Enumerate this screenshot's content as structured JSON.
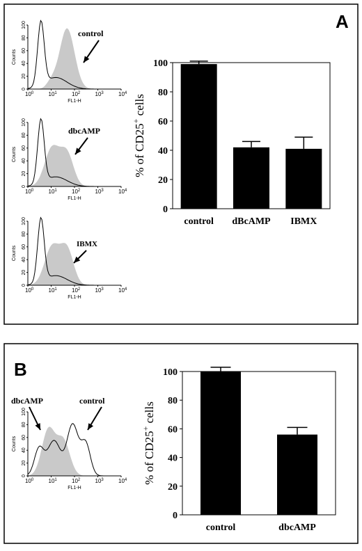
{
  "panel_a": {
    "label": "A",
    "histograms": [
      {
        "label": "control",
        "ylabel": "Counts",
        "xlabel": "FL1-H",
        "yticks": [
          "0",
          "20",
          "40",
          "60",
          "80",
          "100"
        ],
        "xticks": [
          {
            "b": "10",
            "e": "0"
          },
          {
            "b": "10",
            "e": "1"
          },
          {
            "b": "10",
            "e": "2"
          },
          {
            "b": "10",
            "e": "3"
          },
          {
            "b": "10",
            "e": "4"
          }
        ]
      },
      {
        "label": "dbcAMP",
        "ylabel": "Counts",
        "xlabel": "FL1-H",
        "yticks": [
          "0",
          "20",
          "40",
          "60",
          "80",
          "100"
        ],
        "xticks": [
          {
            "b": "10",
            "e": "0"
          },
          {
            "b": "10",
            "e": "1"
          },
          {
            "b": "10",
            "e": "2"
          },
          {
            "b": "10",
            "e": "3"
          },
          {
            "b": "10",
            "e": "4"
          }
        ]
      },
      {
        "label": "IBMX",
        "ylabel": "Counts",
        "xlabel": "FL1-H",
        "yticks": [
          "0",
          "20",
          "40",
          "60",
          "80",
          "100"
        ],
        "xticks": [
          {
            "b": "10",
            "e": "0"
          },
          {
            "b": "10",
            "e": "1"
          },
          {
            "b": "10",
            "e": "2"
          },
          {
            "b": "10",
            "e": "3"
          },
          {
            "b": "10",
            "e": "4"
          }
        ]
      }
    ]
  },
  "panel_b": {
    "label": "B",
    "histogram": {
      "label_left": "dbcAMP",
      "label_right": "control",
      "ylabel": "Counts",
      "xlabel": "FL1-H",
      "yticks": [
        "0",
        "20",
        "40",
        "60",
        "80",
        "100"
      ],
      "xticks": [
        {
          "b": "10",
          "e": "0"
        },
        {
          "b": "10",
          "e": "1"
        },
        {
          "b": "10",
          "e": "2"
        },
        {
          "b": "10",
          "e": "3"
        },
        {
          "b": "10",
          "e": "4"
        }
      ]
    }
  },
  "chart_data": [
    {
      "type": "bar",
      "panel": "A",
      "categories": [
        "control",
        "dBcAMP",
        "IBMX"
      ],
      "values": [
        99,
        42,
        41
      ],
      "errors": [
        2,
        4,
        8
      ],
      "ylabel_main": "% of CD25",
      "ylabel_sup": "+",
      "ylabel_tail": " cells",
      "ylim": [
        0,
        100
      ],
      "yticks": [
        0,
        20,
        40,
        60,
        80,
        100
      ],
      "bar_color": "#000000"
    },
    {
      "type": "bar",
      "panel": "B",
      "categories": [
        "control",
        "dbcAMP"
      ],
      "values": [
        100,
        56
      ],
      "errors": [
        3,
        5
      ],
      "ylabel_main": "% of CD25",
      "ylabel_sup": "+",
      "ylabel_tail": " cells",
      "ylim": [
        0,
        100
      ],
      "yticks": [
        0,
        20,
        40,
        60,
        80,
        100
      ],
      "bar_color": "#000000"
    }
  ]
}
